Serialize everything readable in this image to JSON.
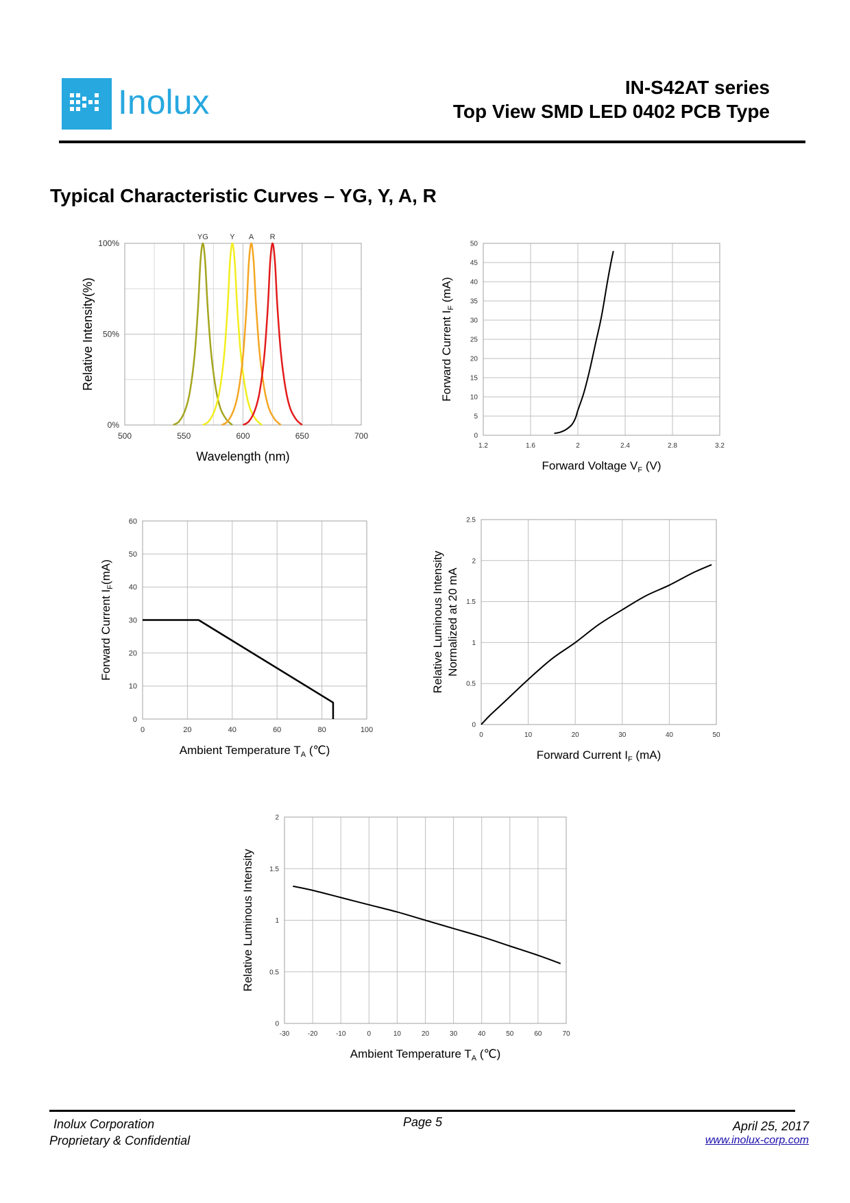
{
  "header": {
    "logo_text": "Inolux",
    "title": "IN-S42AT series",
    "subtitle": "Top View SMD LED 0402 PCB Type"
  },
  "section_title": "Typical Characteristic Curves – YG, Y, A, R",
  "footer": {
    "company": "Inolux Corporation",
    "confidential": "Proprietary & Confidential",
    "page": "Page 5",
    "date": "April 25, 2017",
    "url": "www.inolux-corp.com"
  },
  "chart_data": [
    {
      "id": "spectrum",
      "type": "line",
      "title": "",
      "xlabel": "Wavelength  (nm)",
      "ylabel": "Relative Intensity(%)",
      "xlim": [
        500,
        700
      ],
      "ylim": [
        0,
        100
      ],
      "x_ticks": [
        500,
        550,
        600,
        650,
        700
      ],
      "y_ticks": [
        0,
        50,
        100
      ],
      "y_tick_labels": [
        "0%",
        "50%",
        "100%"
      ],
      "grid": true,
      "legend": "labels above peaks",
      "series": [
        {
          "name": "YG",
          "color": "#a5a520",
          "peak": 566,
          "x": [
            541,
            546,
            551,
            555,
            559,
            562,
            564,
            566,
            568,
            570,
            573,
            577,
            581,
            586,
            591
          ],
          "y": [
            0,
            2,
            8,
            18,
            38,
            65,
            90,
            100,
            90,
            66,
            40,
            20,
            9,
            3,
            0
          ]
        },
        {
          "name": "Y",
          "color": "#f2ee1e",
          "peak": 591,
          "x": [
            566,
            571,
            576,
            580,
            584,
            587,
            589,
            591,
            593,
            595,
            598,
            602,
            606,
            611,
            616
          ],
          "y": [
            0,
            2,
            8,
            18,
            38,
            65,
            90,
            100,
            90,
            66,
            40,
            20,
            9,
            3,
            0
          ]
        },
        {
          "name": "A",
          "color": "#f5a623",
          "peak": 607,
          "x": [
            582,
            587,
            592,
            596,
            600,
            603,
            605,
            607,
            609,
            611,
            614,
            618,
            622,
            627,
            632
          ],
          "y": [
            0,
            2,
            8,
            18,
            38,
            65,
            90,
            100,
            90,
            66,
            40,
            20,
            9,
            3,
            0
          ]
        },
        {
          "name": "R",
          "color": "#e31b1b",
          "peak": 625,
          "x": [
            600,
            605,
            610,
            614,
            618,
            621,
            623,
            625,
            627,
            629,
            632,
            636,
            640,
            645,
            650
          ],
          "y": [
            0,
            2,
            8,
            18,
            38,
            65,
            90,
            100,
            90,
            66,
            40,
            20,
            9,
            3,
            0
          ]
        }
      ]
    },
    {
      "id": "iv-curve",
      "type": "line",
      "xlabel": "Forward Voltage V",
      "xlabel_sub": "F",
      "xlabel_unit": " (V)",
      "ylabel": "Forward Current I",
      "ylabel_sub": "F",
      "ylabel_unit": " (mA)",
      "xlim": [
        1.2,
        3.2
      ],
      "ylim": [
        0,
        50
      ],
      "x_ticks": [
        1.2,
        1.6,
        2,
        2.4,
        2.8,
        3.2
      ],
      "y_ticks": [
        0,
        5,
        10,
        15,
        20,
        25,
        30,
        35,
        40,
        45,
        50
      ],
      "grid": true,
      "series": [
        {
          "color": "#000000",
          "x": [
            1.8,
            1.85,
            1.9,
            1.95,
            1.98,
            2.0,
            2.05,
            2.1,
            2.15,
            2.2,
            2.25,
            2.28,
            2.3
          ],
          "y": [
            0.5,
            0.8,
            1.5,
            2.8,
            4.5,
            6.5,
            11,
            17,
            24,
            31,
            40,
            45,
            48
          ]
        }
      ]
    },
    {
      "id": "derating",
      "type": "line",
      "xlabel": "Ambient Temperature T",
      "xlabel_sub": "A",
      "xlabel_unit": " (℃)",
      "ylabel": "Forward Current I",
      "ylabel_sub": "F",
      "ylabel_unit": "(mA)",
      "xlim": [
        0,
        100
      ],
      "ylim": [
        0,
        60
      ],
      "x_ticks": [
        0,
        20,
        40,
        60,
        80,
        100
      ],
      "y_ticks": [
        0,
        10,
        20,
        30,
        40,
        50,
        60
      ],
      "grid": true,
      "series": [
        {
          "color": "#000000",
          "x": [
            0,
            25,
            85,
            85
          ],
          "y": [
            30,
            30,
            5,
            0
          ]
        }
      ]
    },
    {
      "id": "luminous-vs-current",
      "type": "line",
      "xlabel": "Forward Current I",
      "xlabel_sub": "F",
      "xlabel_unit": " (mA)",
      "ylabel": "Relative Luminous Intensity",
      "ylabel2": "Normalized at 20 mA",
      "xlim": [
        0,
        50
      ],
      "ylim": [
        0,
        2.5
      ],
      "x_ticks": [
        0,
        10,
        20,
        30,
        40,
        50
      ],
      "y_ticks": [
        0,
        0.5,
        1,
        1.5,
        2,
        2.5
      ],
      "grid": true,
      "series": [
        {
          "color": "#000000",
          "x": [
            0,
            2,
            5,
            10,
            15,
            20,
            25,
            30,
            35,
            40,
            45,
            49
          ],
          "y": [
            0,
            0.12,
            0.28,
            0.55,
            0.8,
            1.0,
            1.22,
            1.4,
            1.57,
            1.7,
            1.85,
            1.95
          ]
        }
      ]
    },
    {
      "id": "luminous-vs-temperature",
      "type": "line",
      "xlabel": "Ambient Temperature T",
      "xlabel_sub": "A",
      "xlabel_unit": " (℃)",
      "ylabel": "Relative Luminous Intensity",
      "xlim": [
        -30,
        70
      ],
      "ylim": [
        0,
        2
      ],
      "x_ticks": [
        -30,
        -20,
        -10,
        0,
        10,
        20,
        30,
        40,
        50,
        60,
        70
      ],
      "y_ticks": [
        0,
        0.5,
        1,
        1.5,
        2
      ],
      "grid": true,
      "series": [
        {
          "color": "#000000",
          "x": [
            -27,
            -20,
            -10,
            0,
            10,
            20,
            30,
            40,
            50,
            60,
            68
          ],
          "y": [
            1.33,
            1.29,
            1.22,
            1.15,
            1.08,
            1.0,
            0.92,
            0.84,
            0.75,
            0.66,
            0.58
          ]
        }
      ]
    }
  ]
}
